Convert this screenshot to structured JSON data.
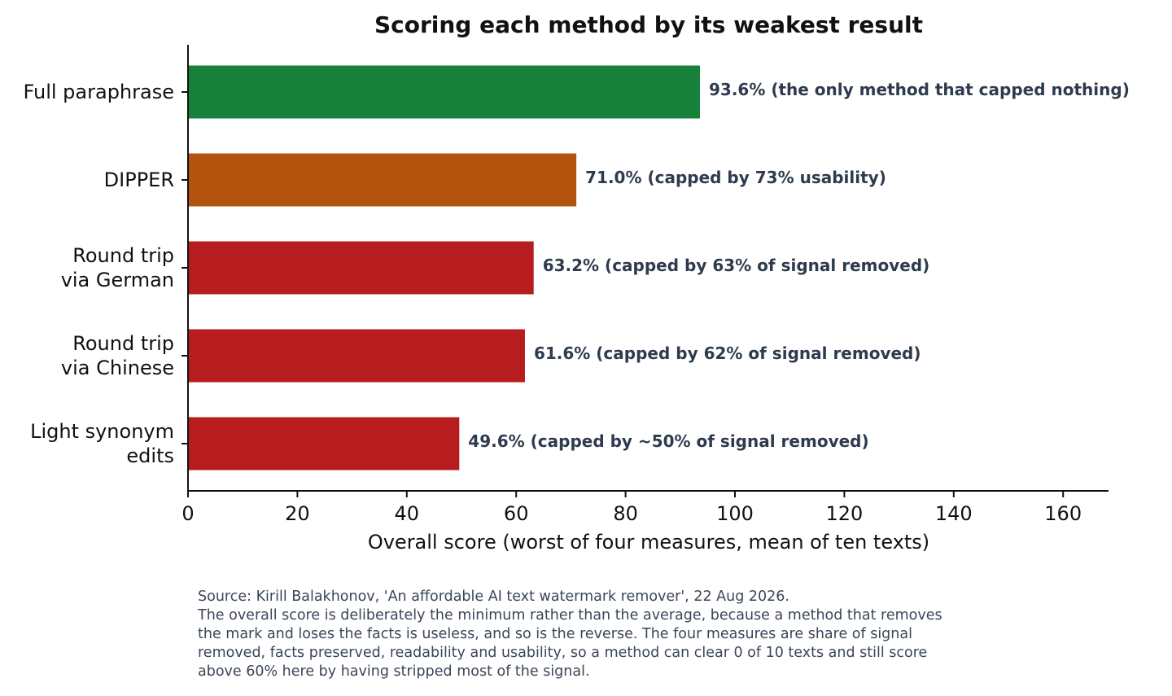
{
  "chart_data": {
    "type": "bar",
    "orientation": "horizontal",
    "title": "Scoring each method by its weakest result",
    "xlabel": "Overall score (worst of four measures, mean of ten texts)",
    "ylabel": "",
    "xlim": [
      0,
      168
    ],
    "x_ticks": [
      "0",
      "20",
      "40",
      "60",
      "80",
      "100",
      "120",
      "140",
      "160"
    ],
    "grid": false,
    "categories": [
      [
        "Full paraphrase"
      ],
      [
        "DIPPER"
      ],
      [
        "Round trip",
        "via German"
      ],
      [
        "Round trip",
        "via Chinese"
      ],
      [
        "Light synonym",
        "edits"
      ]
    ],
    "values": [
      93.6,
      71.0,
      63.2,
      61.6,
      49.6
    ],
    "colors": [
      "#17813c",
      "#b3530d",
      "#b71c1f",
      "#b71c1f",
      "#b71c1f"
    ],
    "data_labels": [
      "93.6%  (the only method that capped nothing)",
      "71.0%  (capped by 73% usability)",
      "63.2%  (capped by 63% of signal removed)",
      "61.6%  (capped by 62% of signal removed)",
      "49.6%  (capped by ~50% of signal removed)"
    ]
  },
  "footer": {
    "lines": [
      "Source: Kirill Balakhonov, 'An affordable AI text watermark remover', 22 Aug 2026.",
      "The overall score is deliberately the minimum rather than the average, because a method that removes",
      "the mark and loses the facts is useless, and so is the reverse. The four measures are share of signal",
      "removed, facts preserved, readability and usability, so a method can clear 0 of 10 texts and still score",
      "above 60% here by having stripped most of the signal."
    ]
  }
}
